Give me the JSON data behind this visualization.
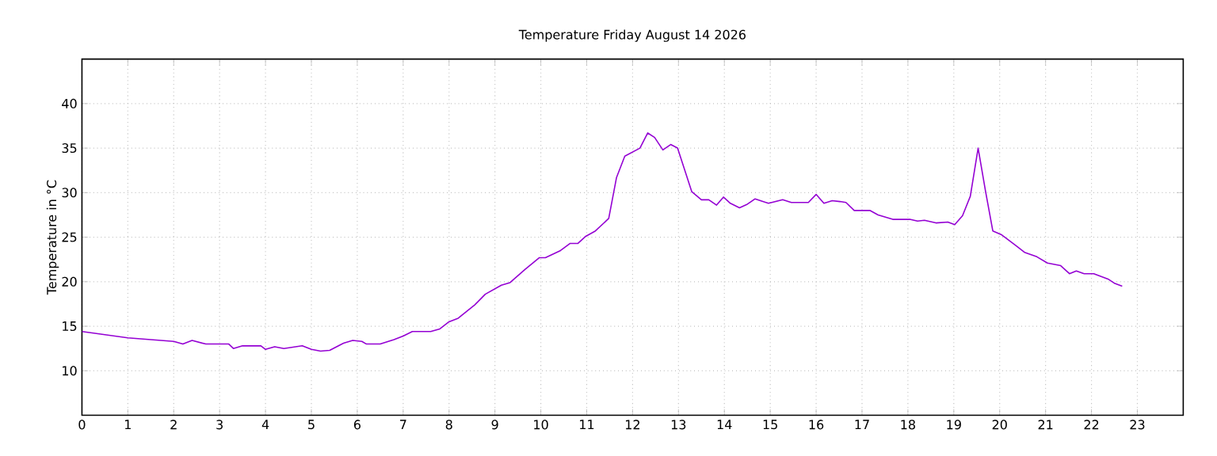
{
  "chart_data": {
    "type": "line",
    "title": "Temperature Friday August 14 2026",
    "ylabel": "Temperature in °C",
    "x": [
      0,
      1,
      1.5,
      2,
      2.2,
      2.4,
      2.7,
      3,
      3.2,
      3.3,
      3.5,
      3.9,
      4,
      4.2,
      4.4,
      4.8,
      5,
      5.2,
      5.4,
      5.7,
      5.9,
      6.1,
      6.2,
      6.5,
      6.8,
      7,
      7.2,
      7.6,
      7.8,
      8,
      8.2,
      8.56,
      8.79,
      9.14,
      9.33,
      9.66,
      9.97,
      10.1,
      10.43,
      10.64,
      10.81,
      10.98,
      11.19,
      11.48,
      11.65,
      11.83,
      12.16,
      12.33,
      12.48,
      12.66,
      12.83,
      12.98,
      13.29,
      13.5,
      13.66,
      13.83,
      13.98,
      14.13,
      14.33,
      14.5,
      14.67,
      14.96,
      15.27,
      15.46,
      15.83,
      16,
      16.17,
      16.35,
      16.52,
      16.65,
      16.83,
      17.17,
      17.35,
      17.67,
      18.04,
      18.21,
      18.36,
      18.61,
      18.87,
      19.02,
      19.19,
      19.36,
      19.53,
      19.69,
      19.85,
      20.03,
      20.34,
      20.54,
      20.81,
      21.04,
      21.33,
      21.52,
      21.67,
      21.84,
      22.05,
      22.36,
      22.51,
      22.67
    ],
    "values": [
      14.4,
      13.7,
      13.5,
      13.3,
      13.0,
      13.4,
      13.0,
      13.0,
      13.0,
      12.5,
      12.8,
      12.8,
      12.4,
      12.7,
      12.5,
      12.8,
      12.4,
      12.2,
      12.3,
      13.1,
      13.4,
      13.3,
      13.0,
      13.0,
      13.5,
      13.9,
      14.4,
      14.4,
      14.7,
      15.5,
      15.9,
      17.4,
      18.6,
      19.6,
      19.9,
      21.4,
      22.7,
      22.7,
      23.5,
      24.3,
      24.3,
      25.1,
      25.7,
      27.1,
      31.7,
      34.1,
      35.0,
      36.7,
      36.2,
      34.8,
      35.4,
      35.0,
      30.1,
      29.2,
      29.2,
      28.6,
      29.5,
      28.8,
      28.3,
      28.7,
      29.3,
      28.8,
      29.2,
      28.9,
      28.9,
      29.8,
      28.8,
      29.1,
      29.0,
      28.9,
      28.0,
      28.0,
      27.5,
      27.0,
      27.0,
      26.8,
      26.9,
      26.6,
      26.7,
      26.4,
      27.4,
      29.6,
      35.0,
      30.2,
      25.7,
      25.3,
      24.1,
      23.3,
      22.8,
      22.1,
      21.8,
      20.9,
      21.2,
      20.9,
      20.9,
      20.3,
      19.8,
      19.5
    ],
    "color": "#9400d3",
    "line_style": "solid",
    "xlim": [
      0,
      24
    ],
    "ylim": [
      5,
      45
    ],
    "xticks": [
      0,
      1,
      2,
      3,
      4,
      5,
      6,
      7,
      8,
      9,
      10,
      11,
      12,
      13,
      14,
      15,
      16,
      17,
      18,
      19,
      20,
      21,
      22,
      23
    ],
    "yticks": [
      10,
      15,
      20,
      25,
      30,
      35,
      40
    ],
    "grid": true
  }
}
